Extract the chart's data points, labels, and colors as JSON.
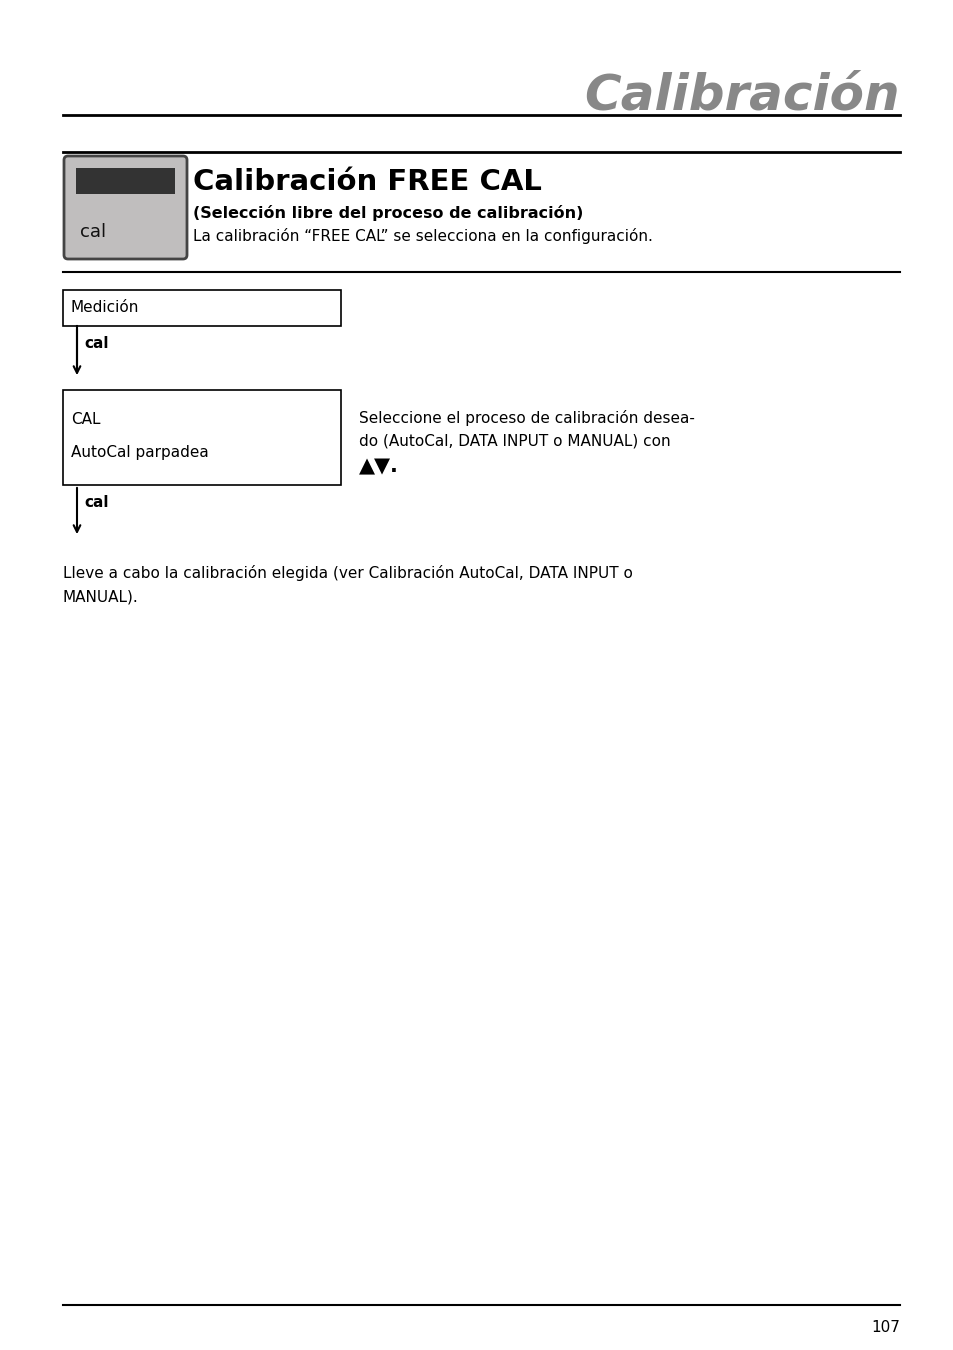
{
  "page_title": "Calibración",
  "section_title": "Calibración FREE CAL",
  "subtitle": "(Selección libre del proceso de calibración)",
  "subtitle_text": "La calibración “FREE CAL” se selecciona en la configuración.",
  "box1_text": "Medición",
  "cal_label": "cal",
  "box2_line1": "CAL",
  "box2_line2": "AutoCal parpadea",
  "right_text_line1": "Seleccione el proceso de calibración desea-",
  "right_text_line2": "do (AutoCal, DATA INPUT o MANUAL) con",
  "arrow_symbol": "▲▼.",
  "bottom_text_line1": "Lleve a cabo la calibración elegida (ver Calibración AutoCal, DATA INPUT o",
  "bottom_text_line2": "MANUAL).",
  "page_number": "107",
  "bg_color": "#ffffff",
  "title_color": "#888888",
  "text_color": "#000000",
  "box_color": "#c0bebe",
  "dark_bar_color": "#333333"
}
